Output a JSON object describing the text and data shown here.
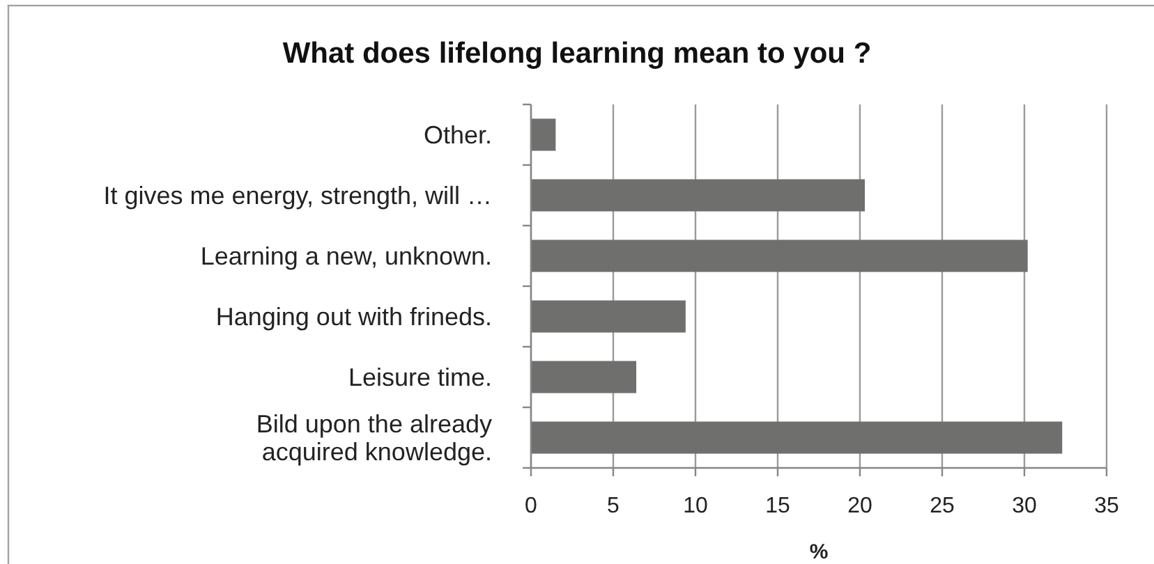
{
  "chart_data": {
    "type": "bar",
    "orientation": "horizontal",
    "title": "What does lifelong learning mean to you ?",
    "xlabel": "%",
    "categories": [
      "Other.",
      "It gives me energy, strength, will …",
      "Learning a new, unknown.",
      "Hanging out with frineds.",
      "Leisure time.",
      "Bild upon the already acquired knowledge."
    ],
    "values": [
      1.5,
      20.3,
      30.2,
      9.4,
      6.4,
      32.3
    ],
    "color": "#6f6f6d",
    "xlim": [
      0,
      35
    ],
    "xticks": [
      0,
      5,
      10,
      15,
      20,
      25,
      30,
      35
    ],
    "grid": "x"
  }
}
